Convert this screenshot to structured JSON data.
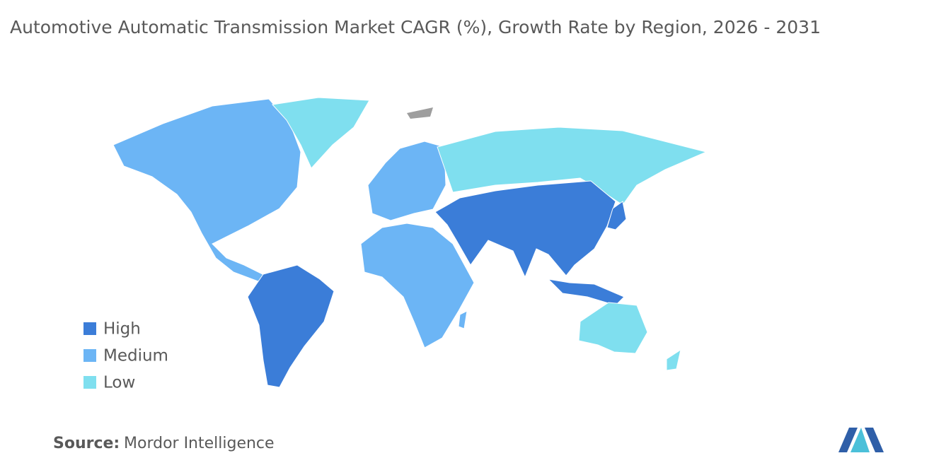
{
  "title": "Automotive Automatic Transmission Market CAGR (%), Growth Rate by Region, 2026 - 2031",
  "legend": [
    {
      "label": "High",
      "color": "#3b7dd8"
    },
    {
      "label": "Medium",
      "color": "#6cb5f5"
    },
    {
      "label": "Low",
      "color": "#7fdfef"
    }
  ],
  "source": {
    "label": "Source:",
    "text": "Mordor Intelligence"
  }
}
